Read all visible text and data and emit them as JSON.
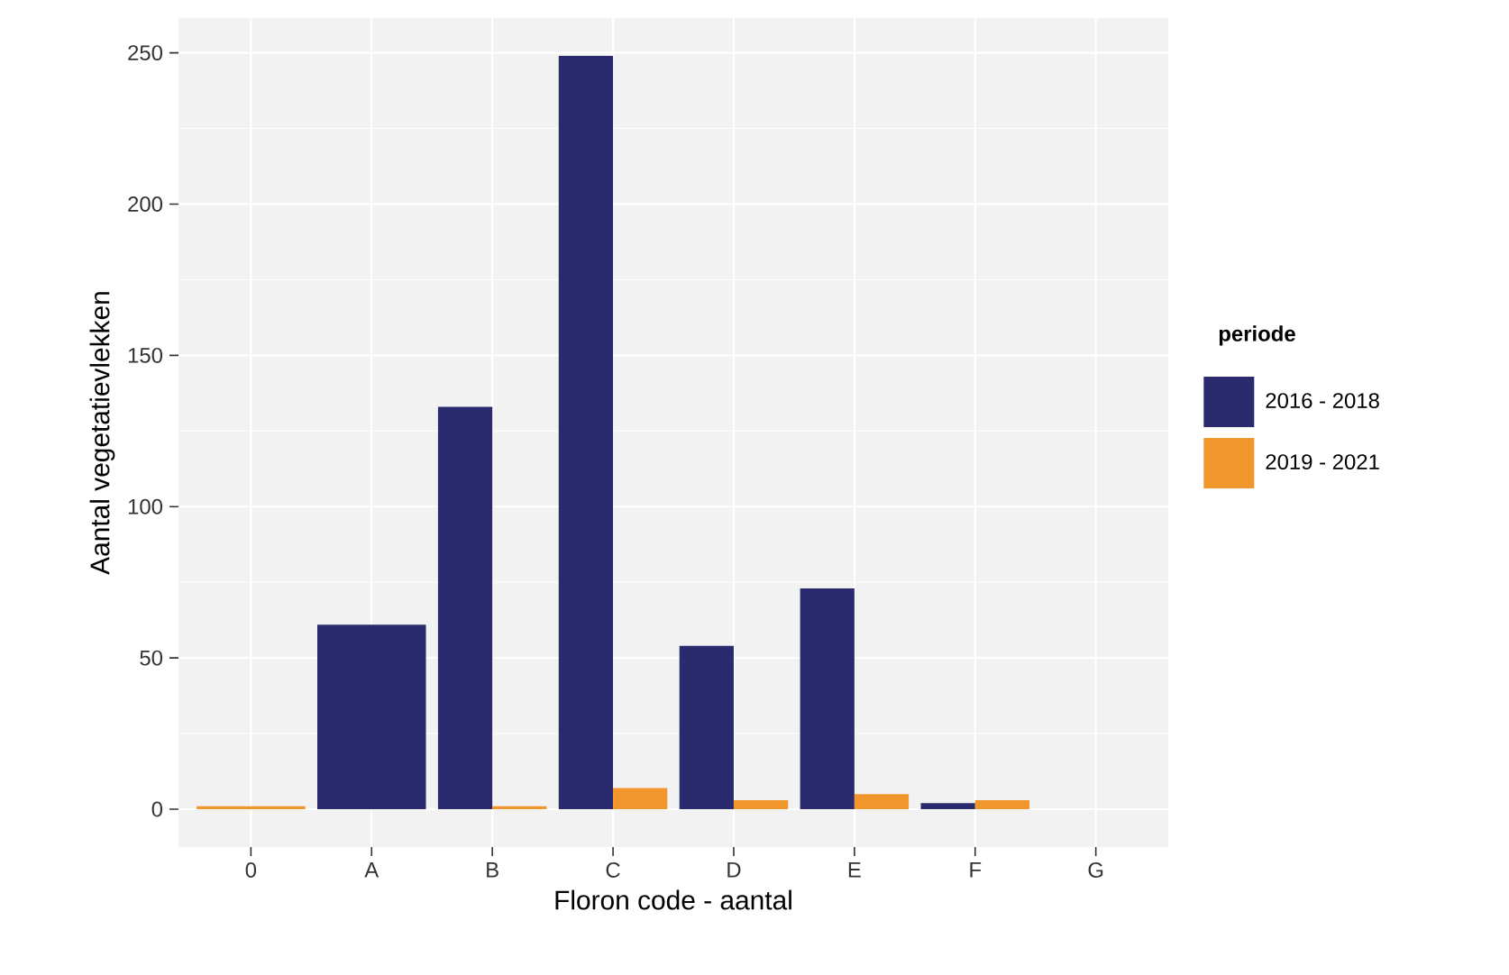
{
  "chart_data": {
    "type": "bar",
    "xlabel": "Floron code - aantal",
    "ylabel": "Aantal vegetatievlekken",
    "legend_title": "periode",
    "categories": [
      "0",
      "A",
      "B",
      "C",
      "D",
      "E",
      "F",
      "G"
    ],
    "series": [
      {
        "name": "2016 - 2018",
        "color": "#2a2a6e",
        "values": [
          null,
          61,
          133,
          249,
          54,
          73,
          2,
          null
        ]
      },
      {
        "name": "2019 - 2021",
        "color": "#f0962d",
        "values": [
          1,
          null,
          1,
          7,
          3,
          5,
          3,
          null
        ]
      }
    ],
    "ylim": [
      -12.5,
      261.5
    ],
    "yticks": [
      0,
      50,
      100,
      150,
      200,
      250
    ],
    "grid": true,
    "legend": "right"
  }
}
